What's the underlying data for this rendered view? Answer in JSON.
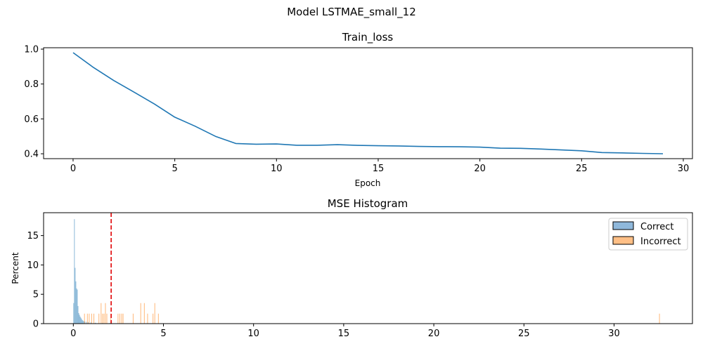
{
  "figure": {
    "suptitle": "Model LSTMAE_small_12"
  },
  "chart_data": [
    {
      "type": "line",
      "title": "Train_loss",
      "xlabel": "Epoch",
      "ylabel": "",
      "xlim": [
        -1.45,
        30.45
      ],
      "ylim": [
        0.372,
        1.008
      ],
      "xticks": [
        0,
        5,
        10,
        15,
        20,
        25,
        30
      ],
      "yticks": [
        0.4,
        0.6,
        0.8,
        1.0
      ],
      "xtick_labels": [
        "0",
        "5",
        "10",
        "15",
        "20",
        "25",
        "30"
      ],
      "ytick_labels": [
        "0.4",
        "0.6",
        "0.8",
        "1.0"
      ],
      "grid": false,
      "series": [
        {
          "color": "#1f77b4",
          "x": [
            0,
            1,
            2,
            3,
            4,
            5,
            6,
            7,
            8,
            9,
            10,
            11,
            12,
            13,
            14,
            15,
            16,
            17,
            18,
            19,
            20,
            21,
            22,
            23,
            24,
            25,
            26,
            27,
            28,
            29
          ],
          "y": [
            0.98,
            0.895,
            0.82,
            0.753,
            0.685,
            0.61,
            0.558,
            0.5,
            0.459,
            0.455,
            0.456,
            0.449,
            0.449,
            0.452,
            0.448,
            0.446,
            0.445,
            0.442,
            0.441,
            0.44,
            0.438,
            0.432,
            0.431,
            0.427,
            0.422,
            0.417,
            0.407,
            0.405,
            0.402,
            0.4
          ]
        }
      ]
    },
    {
      "type": "histogram",
      "title": "MSE Histogram",
      "xlabel": "",
      "ylabel": "Percent",
      "xlim": [
        -1.65,
        34.35
      ],
      "ylim": [
        0,
        18.9
      ],
      "xticks": [
        0,
        5,
        10,
        15,
        20,
        25,
        30
      ],
      "yticks": [
        0,
        5,
        10,
        15
      ],
      "xtick_labels": [
        "0",
        "5",
        "10",
        "15",
        "20",
        "25",
        "30"
      ],
      "ytick_labels": [
        "0",
        "5",
        "10",
        "15"
      ],
      "grid": false,
      "legend_position": "top-right",
      "threshold": {
        "x": 2.1,
        "color": "#e31a1c",
        "style": "dashed"
      },
      "bin_width": 0.04,
      "series": [
        {
          "name": "Correct",
          "color": "#1f77b4",
          "bins": [
            [
              0.0,
              3.5
            ],
            [
              0.04,
              17.8
            ],
            [
              0.08,
              9.5
            ],
            [
              0.12,
              7.2
            ],
            [
              0.16,
              6.0
            ],
            [
              0.2,
              5.8
            ],
            [
              0.24,
              3.0
            ],
            [
              0.28,
              1.8
            ],
            [
              0.32,
              1.5
            ],
            [
              0.36,
              1.2
            ],
            [
              0.4,
              1.0
            ],
            [
              0.44,
              0.8
            ],
            [
              0.48,
              0.6
            ],
            [
              0.52,
              0.5
            ],
            [
              0.56,
              0.4
            ],
            [
              0.62,
              0.35
            ],
            [
              0.7,
              0.3
            ],
            [
              0.8,
              0.25
            ],
            [
              0.95,
              0.2
            ],
            [
              1.2,
              0.15
            ],
            [
              1.6,
              0.1
            ],
            [
              2.0,
              0.1
            ]
          ]
        },
        {
          "name": "Incorrect",
          "color": "#ff7f0e",
          "bins": [
            [
              0.6,
              1.7
            ],
            [
              0.76,
              1.7
            ],
            [
              0.86,
              1.7
            ],
            [
              1.0,
              1.7
            ],
            [
              1.12,
              1.7
            ],
            [
              1.4,
              1.7
            ],
            [
              1.52,
              3.5
            ],
            [
              1.6,
              1.7
            ],
            [
              1.68,
              1.7
            ],
            [
              1.76,
              3.5
            ],
            [
              1.84,
              1.7
            ],
            [
              2.06,
              1.7
            ],
            [
              2.46,
              1.7
            ],
            [
              2.56,
              1.7
            ],
            [
              2.66,
              1.7
            ],
            [
              2.74,
              1.7
            ],
            [
              3.3,
              1.7
            ],
            [
              3.72,
              3.5
            ],
            [
              3.92,
              3.5
            ],
            [
              4.1,
              1.7
            ],
            [
              4.4,
              1.7
            ],
            [
              4.5,
              3.5
            ],
            [
              4.7,
              1.7
            ],
            [
              32.5,
              1.7
            ]
          ]
        }
      ]
    }
  ]
}
